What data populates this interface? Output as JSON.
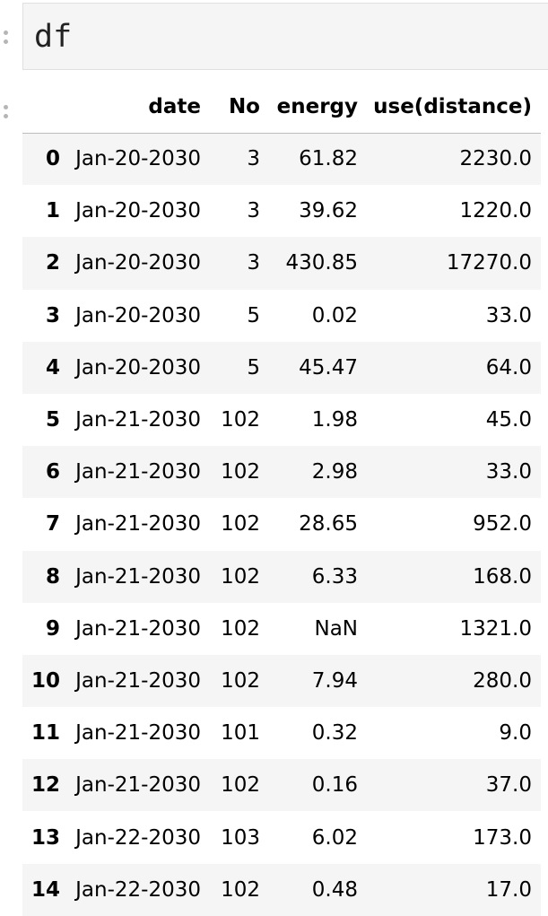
{
  "input_cell": {
    "code": "df"
  },
  "table": {
    "columns": [
      "",
      "date",
      "No",
      "energy",
      "use(distance)"
    ],
    "rows": [
      {
        "index": "0",
        "date": "Jan-20-2030",
        "no": "3",
        "energy": "61.82",
        "use": "2230.0"
      },
      {
        "index": "1",
        "date": "Jan-20-2030",
        "no": "3",
        "energy": "39.62",
        "use": "1220.0"
      },
      {
        "index": "2",
        "date": "Jan-20-2030",
        "no": "3",
        "energy": "430.85",
        "use": "17270.0"
      },
      {
        "index": "3",
        "date": "Jan-20-2030",
        "no": "5",
        "energy": "0.02",
        "use": "33.0"
      },
      {
        "index": "4",
        "date": "Jan-20-2030",
        "no": "5",
        "energy": "45.47",
        "use": "64.0"
      },
      {
        "index": "5",
        "date": "Jan-21-2030",
        "no": "102",
        "energy": "1.98",
        "use": "45.0"
      },
      {
        "index": "6",
        "date": "Jan-21-2030",
        "no": "102",
        "energy": "2.98",
        "use": "33.0"
      },
      {
        "index": "7",
        "date": "Jan-21-2030",
        "no": "102",
        "energy": "28.65",
        "use": "952.0"
      },
      {
        "index": "8",
        "date": "Jan-21-2030",
        "no": "102",
        "energy": "6.33",
        "use": "168.0"
      },
      {
        "index": "9",
        "date": "Jan-21-2030",
        "no": "102",
        "energy": "NaN",
        "use": "1321.0"
      },
      {
        "index": "10",
        "date": "Jan-21-2030",
        "no": "102",
        "energy": "7.94",
        "use": "280.0"
      },
      {
        "index": "11",
        "date": "Jan-21-2030",
        "no": "101",
        "energy": "0.32",
        "use": "9.0"
      },
      {
        "index": "12",
        "date": "Jan-21-2030",
        "no": "102",
        "energy": "0.16",
        "use": "37.0"
      },
      {
        "index": "13",
        "date": "Jan-22-2030",
        "no": "103",
        "energy": "6.02",
        "use": "173.0"
      },
      {
        "index": "14",
        "date": "Jan-22-2030",
        "no": "102",
        "energy": "0.48",
        "use": "17.0"
      }
    ]
  },
  "colors": {
    "stripe": "#f5f5f5",
    "input_bg": "#f5f5f5",
    "gutter_dots": "#b5b5b5"
  }
}
